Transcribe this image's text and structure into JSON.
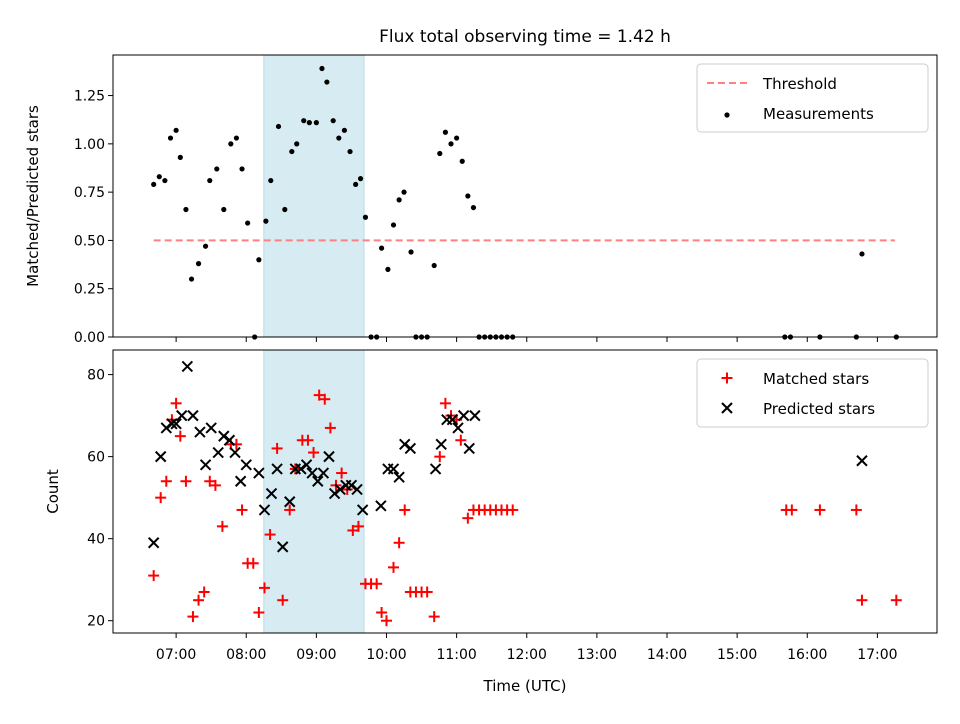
{
  "chart_data": {
    "type": "scatter",
    "title": "Flux total observing time = 1.42 h",
    "xlabel": "Time (UTC)",
    "x_tick_labels": [
      "07:00",
      "08:00",
      "09:00",
      "10:00",
      "11:00",
      "12:00",
      "13:00",
      "14:00",
      "15:00",
      "16:00",
      "17:00"
    ],
    "x_ticks_hours": [
      7,
      8,
      9,
      10,
      11,
      12,
      13,
      14,
      15,
      16,
      17
    ],
    "x_range_hours": [
      6.1,
      17.85
    ],
    "highlight_span_hours": [
      8.25,
      9.68
    ],
    "highlight_color": "#add8e6",
    "panels": [
      {
        "ylabel": "Matched/Predicted stars",
        "ylim": [
          0,
          1.46
        ],
        "y_tick_labels": [
          "0.00",
          "0.25",
          "0.50",
          "0.75",
          "1.00",
          "1.25"
        ],
        "y_ticks": [
          0,
          0.25,
          0.5,
          0.75,
          1.0,
          1.25
        ],
        "threshold": {
          "name": "Threshold",
          "value": 0.5,
          "x_range": [
            6.68,
            17.25
          ],
          "color": "#ff8080",
          "style": "dashed"
        },
        "series": [
          {
            "name": "Measurements",
            "color": "#000000",
            "marker": "dot",
            "points": [
              [
                6.68,
                0.79
              ],
              [
                6.76,
                0.83
              ],
              [
                6.84,
                0.81
              ],
              [
                6.92,
                1.03
              ],
              [
                7.0,
                1.07
              ],
              [
                7.06,
                0.93
              ],
              [
                7.14,
                0.66
              ],
              [
                7.22,
                0.3
              ],
              [
                7.32,
                0.38
              ],
              [
                7.42,
                0.47
              ],
              [
                7.48,
                0.81
              ],
              [
                7.58,
                0.87
              ],
              [
                7.68,
                0.66
              ],
              [
                7.78,
                1.0
              ],
              [
                7.86,
                1.03
              ],
              [
                7.94,
                0.87
              ],
              [
                8.02,
                0.59
              ],
              [
                8.12,
                0.0
              ],
              [
                8.18,
                0.4
              ],
              [
                8.28,
                0.6
              ],
              [
                8.35,
                0.81
              ],
              [
                8.46,
                1.09
              ],
              [
                8.55,
                0.66
              ],
              [
                8.65,
                0.96
              ],
              [
                8.72,
                1.0
              ],
              [
                8.82,
                1.12
              ],
              [
                8.9,
                1.11
              ],
              [
                9.0,
                1.11
              ],
              [
                9.08,
                1.39
              ],
              [
                9.15,
                1.32
              ],
              [
                9.24,
                1.12
              ],
              [
                9.32,
                1.03
              ],
              [
                9.4,
                1.07
              ],
              [
                9.48,
                0.96
              ],
              [
                9.56,
                0.79
              ],
              [
                9.63,
                0.82
              ],
              [
                9.7,
                0.62
              ],
              [
                9.78,
                0.0
              ],
              [
                9.86,
                0.0
              ],
              [
                9.93,
                0.46
              ],
              [
                10.02,
                0.35
              ],
              [
                10.1,
                0.58
              ],
              [
                10.18,
                0.71
              ],
              [
                10.25,
                0.75
              ],
              [
                10.35,
                0.44
              ],
              [
                10.42,
                0.0
              ],
              [
                10.5,
                0.0
              ],
              [
                10.58,
                0.0
              ],
              [
                10.68,
                0.37
              ],
              [
                10.76,
                0.95
              ],
              [
                10.84,
                1.06
              ],
              [
                10.92,
                1.0
              ],
              [
                11.0,
                1.03
              ],
              [
                11.08,
                0.91
              ],
              [
                11.16,
                0.73
              ],
              [
                11.24,
                0.67
              ],
              [
                11.32,
                0.0
              ],
              [
                11.4,
                0.0
              ],
              [
                11.48,
                0.0
              ],
              [
                11.56,
                0.0
              ],
              [
                11.64,
                0.0
              ],
              [
                11.72,
                0.0
              ],
              [
                11.8,
                0.0
              ],
              [
                15.68,
                0.0
              ],
              [
                15.76,
                0.0
              ],
              [
                16.18,
                0.0
              ],
              [
                16.7,
                0.0
              ],
              [
                16.78,
                0.43
              ],
              [
                17.27,
                0.0
              ]
            ]
          }
        ],
        "legend": [
          "Threshold",
          "Measurements"
        ],
        "legend_position": "upper right"
      },
      {
        "ylabel": "Count",
        "ylim": [
          17,
          86
        ],
        "y_tick_labels": [
          "20",
          "40",
          "60",
          "80"
        ],
        "y_ticks": [
          20,
          40,
          60,
          80
        ],
        "series": [
          {
            "name": "Matched stars",
            "color": "#ff0000",
            "marker": "plus",
            "points": [
              [
                6.68,
                31
              ],
              [
                6.78,
                50
              ],
              [
                6.86,
                54
              ],
              [
                6.94,
                69
              ],
              [
                7.0,
                73
              ],
              [
                7.06,
                65
              ],
              [
                7.14,
                54
              ],
              [
                7.24,
                21
              ],
              [
                7.32,
                25
              ],
              [
                7.4,
                27
              ],
              [
                7.48,
                54
              ],
              [
                7.56,
                53
              ],
              [
                7.66,
                43
              ],
              [
                7.78,
                63
              ],
              [
                7.86,
                63
              ],
              [
                7.94,
                47
              ],
              [
                8.02,
                34
              ],
              [
                8.1,
                34
              ],
              [
                8.18,
                22
              ],
              [
                8.26,
                28
              ],
              [
                8.34,
                41
              ],
              [
                8.44,
                62
              ],
              [
                8.52,
                25
              ],
              [
                8.62,
                47
              ],
              [
                8.7,
                57
              ],
              [
                8.8,
                64
              ],
              [
                8.88,
                64
              ],
              [
                8.96,
                61
              ],
              [
                9.04,
                75
              ],
              [
                9.12,
                74
              ],
              [
                9.2,
                67
              ],
              [
                9.28,
                53
              ],
              [
                9.36,
                56
              ],
              [
                9.44,
                52
              ],
              [
                9.52,
                42
              ],
              [
                9.6,
                43
              ],
              [
                9.7,
                29
              ],
              [
                9.78,
                29
              ],
              [
                9.86,
                29
              ],
              [
                9.93,
                22
              ],
              [
                10.0,
                20
              ],
              [
                10.1,
                33
              ],
              [
                10.18,
                39
              ],
              [
                10.26,
                47
              ],
              [
                10.34,
                27
              ],
              [
                10.42,
                27
              ],
              [
                10.5,
                27
              ],
              [
                10.58,
                27
              ],
              [
                10.68,
                21
              ],
              [
                10.76,
                60
              ],
              [
                10.84,
                73
              ],
              [
                10.92,
                70
              ],
              [
                11.0,
                69
              ],
              [
                11.06,
                64
              ],
              [
                11.16,
                45
              ],
              [
                11.24,
                47
              ],
              [
                11.32,
                47
              ],
              [
                11.4,
                47
              ],
              [
                11.48,
                47
              ],
              [
                11.56,
                47
              ],
              [
                11.64,
                47
              ],
              [
                11.72,
                47
              ],
              [
                11.8,
                47
              ],
              [
                15.7,
                47
              ],
              [
                15.78,
                47
              ],
              [
                16.18,
                47
              ],
              [
                16.7,
                47
              ],
              [
                16.78,
                25
              ],
              [
                17.27,
                25
              ]
            ]
          },
          {
            "name": "Predicted stars",
            "color": "#000000",
            "marker": "x",
            "points": [
              [
                6.68,
                39
              ],
              [
                6.78,
                60
              ],
              [
                6.86,
                67
              ],
              [
                6.94,
                68
              ],
              [
                7.0,
                68
              ],
              [
                7.08,
                70
              ],
              [
                7.16,
                82
              ],
              [
                7.24,
                70
              ],
              [
                7.34,
                66
              ],
              [
                7.42,
                58
              ],
              [
                7.5,
                67
              ],
              [
                7.6,
                61
              ],
              [
                7.68,
                65
              ],
              [
                7.76,
                64
              ],
              [
                7.84,
                61
              ],
              [
                7.92,
                54
              ],
              [
                8.0,
                58
              ],
              [
                8.18,
                56
              ],
              [
                8.26,
                47
              ],
              [
                8.36,
                51
              ],
              [
                8.44,
                57
              ],
              [
                8.52,
                38
              ],
              [
                8.62,
                49
              ],
              [
                8.7,
                57
              ],
              [
                8.78,
                57
              ],
              [
                8.86,
                58
              ],
              [
                8.94,
                56
              ],
              [
                9.02,
                54
              ],
              [
                9.1,
                56
              ],
              [
                9.18,
                60
              ],
              [
                9.26,
                51
              ],
              [
                9.34,
                52
              ],
              [
                9.42,
                53
              ],
              [
                9.5,
                53
              ],
              [
                9.58,
                52
              ],
              [
                9.66,
                47
              ],
              [
                9.92,
                48
              ],
              [
                10.02,
                57
              ],
              [
                10.1,
                57
              ],
              [
                10.18,
                55
              ],
              [
                10.26,
                63
              ],
              [
                10.34,
                62
              ],
              [
                10.7,
                57
              ],
              [
                10.78,
                63
              ],
              [
                10.86,
                69
              ],
              [
                10.94,
                69
              ],
              [
                11.02,
                67
              ],
              [
                11.1,
                70
              ],
              [
                11.18,
                62
              ],
              [
                11.26,
                70
              ],
              [
                16.78,
                59
              ]
            ]
          }
        ],
        "legend": [
          "Matched stars",
          "Predicted stars"
        ],
        "legend_position": "upper right"
      }
    ]
  }
}
